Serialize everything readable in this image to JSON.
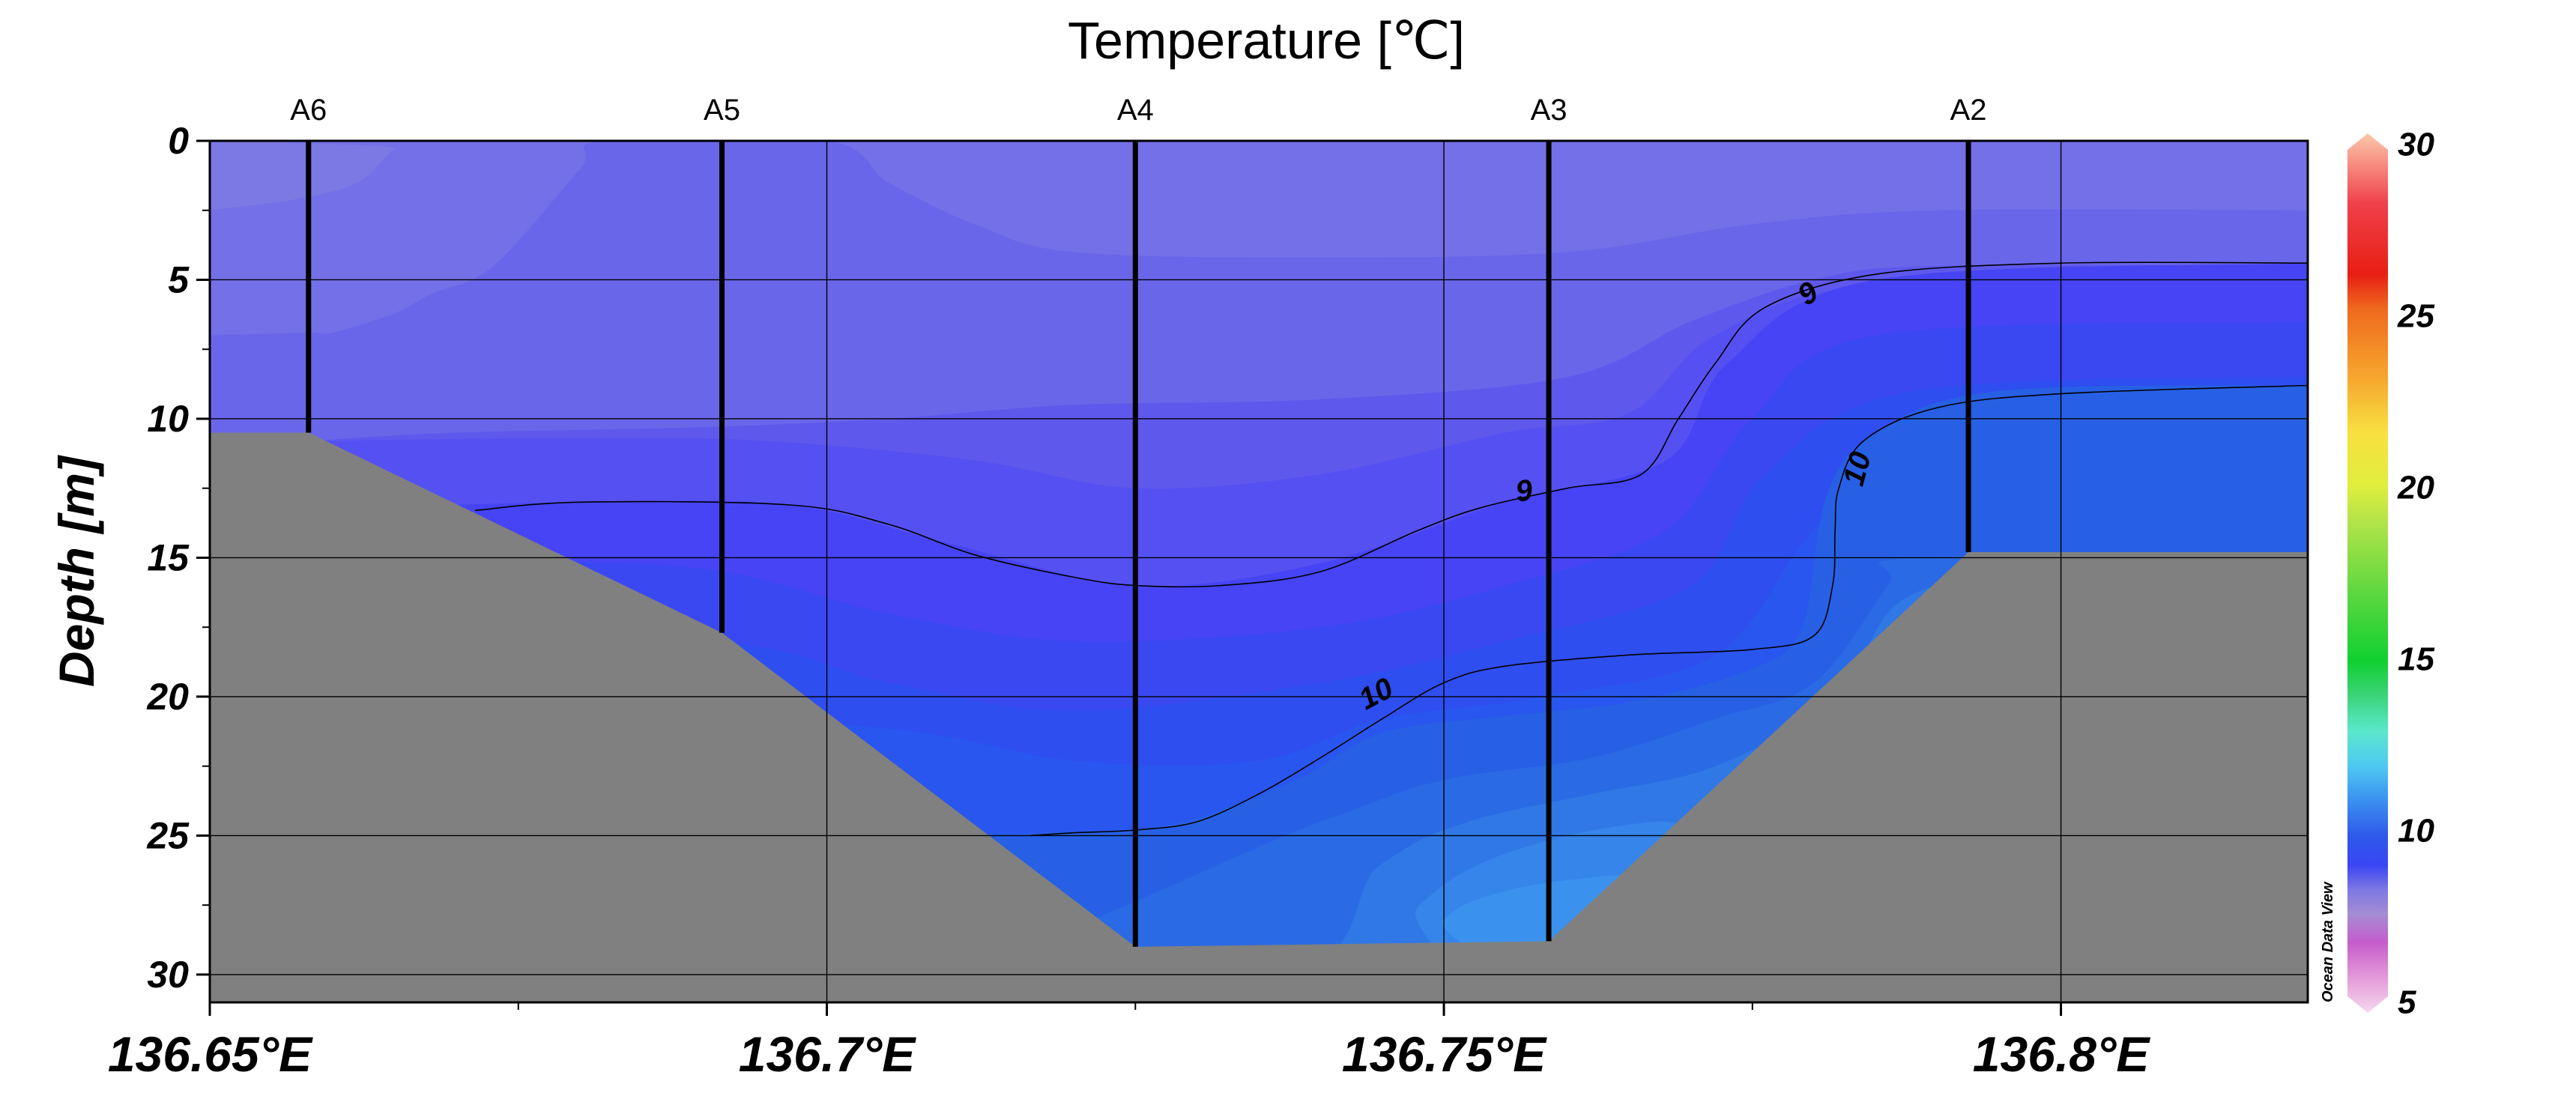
{
  "chart_data": {
    "type": "heatmap",
    "title": "Temperature [℃]",
    "ylabel": "Depth [m]",
    "xlabel": "",
    "x_unit_suffix": "°E",
    "xlim": [
      136.65,
      136.82
    ],
    "ylim": [
      0,
      31
    ],
    "y_inverted": true,
    "x_ticks": [
      "136.65°E",
      "136.7°E",
      "136.75°E",
      "136.8°E"
    ],
    "x_tick_values": [
      136.65,
      136.7,
      136.75,
      136.8
    ],
    "x_minor_ticks": [
      136.675,
      136.725,
      136.775
    ],
    "y_ticks": [
      0,
      5,
      10,
      15,
      20,
      25,
      30
    ],
    "y_minor_ticks": [
      2.5,
      7.5,
      12.5,
      17.5,
      22.5,
      27.5
    ],
    "grid": true,
    "stations": [
      {
        "name": "A6",
        "lon": 136.658,
        "max_depth": 10.5
      },
      {
        "name": "A5",
        "lon": 136.6915,
        "max_depth": 17.7
      },
      {
        "name": "A4",
        "lon": 136.725,
        "max_depth": 29.0
      },
      {
        "name": "A3",
        "lon": 136.7585,
        "max_depth": 28.8
      },
      {
        "name": "A2",
        "lon": 136.7925,
        "max_depth": 14.8
      }
    ],
    "bottom_profile": [
      {
        "lon": 136.65,
        "depth": 10.5
      },
      {
        "lon": 136.658,
        "depth": 10.5
      },
      {
        "lon": 136.6915,
        "depth": 17.7
      },
      {
        "lon": 136.725,
        "depth": 29.0
      },
      {
        "lon": 136.7585,
        "depth": 28.8
      },
      {
        "lon": 136.7925,
        "depth": 14.8
      },
      {
        "lon": 136.82,
        "depth": 14.8
      }
    ],
    "temperature_bands": [
      {
        "temp": 8.5,
        "color": "#7c78e4",
        "upper": [
          [
            136.65,
            0
          ],
          [
            136.82,
            0
          ]
        ]
      },
      {
        "temp": 8.6,
        "color": "#7470e8",
        "upper": [
          [
            136.65,
            2.5
          ],
          [
            136.657,
            2.1
          ],
          [
            136.662,
            1.5
          ],
          [
            136.665,
            0.3
          ],
          [
            136.668,
            0
          ],
          [
            136.82,
            0
          ]
        ]
      },
      {
        "temp": 8.7,
        "color": "#6a66ea",
        "upper": [
          [
            136.65,
            7
          ],
          [
            136.658,
            6.9
          ],
          [
            136.66,
            6.9
          ],
          [
            136.665,
            6.2
          ],
          [
            136.668,
            5.5
          ],
          [
            136.673,
            4.5
          ],
          [
            136.68,
            1
          ],
          [
            136.682,
            0
          ],
          [
            136.7,
            0
          ],
          [
            136.705,
            1.5
          ],
          [
            136.712,
            3
          ],
          [
            136.72,
            4
          ],
          [
            136.74,
            4.2
          ],
          [
            136.76,
            4
          ],
          [
            136.775,
            3
          ],
          [
            136.79,
            2.5
          ],
          [
            136.82,
            2.5
          ]
        ]
      },
      {
        "temp": 8.8,
        "color": "#5e58ec",
        "upper": [
          [
            136.65,
            11
          ],
          [
            136.658,
            10.8
          ],
          [
            136.67,
            10.5
          ],
          [
            136.69,
            10.3
          ],
          [
            136.705,
            10
          ],
          [
            136.72,
            9.5
          ],
          [
            136.74,
            9.3
          ],
          [
            136.76,
            8.5
          ],
          [
            136.77,
            6.5
          ],
          [
            136.78,
            5
          ],
          [
            136.79,
            4.5
          ],
          [
            136.82,
            4.5
          ]
        ]
      },
      {
        "temp": 8.9,
        "color": "#5450f2",
        "upper": [
          [
            136.65,
            11
          ],
          [
            136.66,
            10.8
          ],
          [
            136.68,
            10.7
          ],
          [
            136.695,
            10.8
          ],
          [
            136.712,
            11.5
          ],
          [
            136.725,
            12.5
          ],
          [
            136.74,
            12
          ],
          [
            136.755,
            10.5
          ],
          [
            136.765,
            9.8
          ],
          [
            136.772,
            7
          ],
          [
            136.785,
            5.2
          ],
          [
            136.82,
            5
          ]
        ]
      },
      {
        "temp": 9.0,
        "color": "#4644f4",
        "upper": [
          [
            136.65,
            14
          ],
          [
            136.66,
            13.3
          ],
          [
            136.68,
            13
          ],
          [
            136.697,
            13.1
          ],
          [
            136.71,
            14.5
          ],
          [
            136.725,
            16
          ],
          [
            136.74,
            15.2
          ],
          [
            136.755,
            13
          ],
          [
            136.768,
            11.5
          ],
          [
            136.773,
            8
          ],
          [
            136.785,
            5
          ],
          [
            136.82,
            4.4
          ]
        ]
      },
      {
        "temp": 9.2,
        "color": "#3a48f2",
        "upper": [
          [
            136.65,
            16
          ],
          [
            136.67,
            15.2
          ],
          [
            136.69,
            15.4
          ],
          [
            136.705,
            17
          ],
          [
            136.72,
            18
          ],
          [
            136.74,
            17.5
          ],
          [
            136.755,
            16
          ],
          [
            136.768,
            14
          ],
          [
            136.775,
            10
          ],
          [
            136.785,
            7
          ],
          [
            136.82,
            6.5
          ]
        ]
      },
      {
        "temp": 9.4,
        "color": "#2e4ef0",
        "upper": [
          [
            136.65,
            18
          ],
          [
            136.69,
            18
          ],
          [
            136.705,
            19.5
          ],
          [
            136.72,
            20.5
          ],
          [
            136.74,
            19.5
          ],
          [
            136.755,
            18
          ],
          [
            136.77,
            16
          ],
          [
            136.776,
            12
          ],
          [
            136.788,
            9
          ],
          [
            136.82,
            8.5
          ]
        ]
      },
      {
        "temp": 9.7,
        "color": "#2856ee",
        "upper": [
          [
            136.65,
            21
          ],
          [
            136.7,
            21
          ],
          [
            136.72,
            22.3
          ],
          [
            136.735,
            22.3
          ],
          [
            136.745,
            20.8
          ],
          [
            136.758,
            20
          ],
          [
            136.772,
            18.5
          ],
          [
            136.78,
            14
          ],
          [
            136.79,
            10.3
          ],
          [
            136.82,
            10
          ]
        ]
      },
      {
        "temp": 10.0,
        "color": "#2760e4",
        "upper": [
          [
            136.65,
            25
          ],
          [
            136.7,
            25
          ],
          [
            136.718,
            24.9
          ],
          [
            136.728,
            24.6
          ],
          [
            136.738,
            23
          ],
          [
            136.745,
            21.3
          ],
          [
            136.755,
            20.7
          ],
          [
            136.765,
            20.2
          ],
          [
            136.775,
            19
          ],
          [
            136.779,
            17.5
          ],
          [
            136.781,
            12.8
          ],
          [
            136.785,
            10.5
          ],
          [
            136.795,
            9
          ],
          [
            136.82,
            8.8
          ]
        ]
      },
      {
        "temp": 10.2,
        "color": "#2a6ae4",
        "upper": [
          [
            136.65,
            31
          ],
          [
            136.7,
            31
          ],
          [
            136.74,
            24.5
          ],
          [
            136.75,
            23
          ],
          [
            136.762,
            22.2
          ],
          [
            136.772,
            20.8
          ],
          [
            136.78,
            19.5
          ],
          [
            136.786,
            16
          ],
          [
            136.788,
            15
          ],
          [
            136.82,
            15
          ]
        ]
      },
      {
        "temp": 10.4,
        "color": "#2f78e6",
        "upper": [
          [
            136.65,
            31
          ],
          [
            136.73,
            31
          ],
          [
            136.745,
            26
          ],
          [
            136.752,
            24.5
          ],
          [
            136.762,
            23.5
          ],
          [
            136.772,
            22.5
          ],
          [
            136.782,
            20
          ],
          [
            136.79,
            16
          ],
          [
            136.82,
            16
          ]
        ]
      },
      {
        "temp": 10.6,
        "color": "#3585ea",
        "upper": [
          [
            136.65,
            31
          ],
          [
            136.74,
            31
          ],
          [
            136.748,
            27.5
          ],
          [
            136.753,
            26
          ],
          [
            136.76,
            25
          ],
          [
            136.767,
            24.5
          ],
          [
            136.772,
            24.5
          ],
          [
            136.78,
            22.5
          ],
          [
            136.786,
            20
          ],
          [
            136.82,
            20
          ]
        ]
      },
      {
        "temp": 10.8,
        "color": "#3b92ee",
        "upper": [
          [
            136.65,
            31
          ],
          [
            136.745,
            31
          ],
          [
            136.75,
            28
          ],
          [
            136.755,
            27
          ],
          [
            136.762,
            26.5
          ],
          [
            136.775,
            26
          ],
          [
            136.782,
            24
          ],
          [
            136.82,
            24
          ]
        ]
      }
    ],
    "contours": [
      {
        "level": 9,
        "label": "9",
        "points": [
          [
            136.6715,
            13.3
          ],
          [
            136.68,
            13
          ],
          [
            136.697,
            13.1
          ],
          [
            136.705,
            13.8
          ],
          [
            136.712,
            14.9
          ],
          [
            136.72,
            15.7
          ],
          [
            136.725,
            16.0
          ],
          [
            136.732,
            16.0
          ],
          [
            136.74,
            15.5
          ],
          [
            136.748,
            14
          ],
          [
            136.753,
            13.2
          ],
          [
            136.76,
            12.5
          ],
          [
            136.766,
            12
          ],
          [
            136.769,
            10
          ],
          [
            136.772,
            8
          ],
          [
            136.776,
            6
          ],
          [
            136.785,
            4.8
          ],
          [
            136.8,
            4.4
          ],
          [
            136.82,
            4.4
          ]
        ],
        "labels": [
          {
            "lon": 136.7565,
            "depth": 12.6,
            "angle": -8
          },
          {
            "lon": 136.7795,
            "depth": 5.5,
            "angle": -35
          }
        ]
      },
      {
        "level": 10,
        "label": "10",
        "points": [
          [
            136.7165,
            25.0
          ],
          [
            136.72,
            24.9
          ],
          [
            136.725,
            24.8
          ],
          [
            136.73,
            24.5
          ],
          [
            136.735,
            23.5
          ],
          [
            136.74,
            22.2
          ],
          [
            136.745,
            20.8
          ],
          [
            136.75,
            19.5
          ],
          [
            136.755,
            18.9
          ],
          [
            136.765,
            18.5
          ],
          [
            136.775,
            18.3
          ],
          [
            136.78,
            17.8
          ],
          [
            136.7815,
            16
          ],
          [
            136.7817,
            14
          ],
          [
            136.782,
            12.5
          ],
          [
            136.784,
            10.8
          ],
          [
            136.79,
            9.6
          ],
          [
            136.8,
            9.1
          ],
          [
            136.82,
            8.8
          ]
        ],
        "labels": [
          {
            "lon": 136.7445,
            "depth": 19.9,
            "angle": -28
          },
          {
            "lon": 136.7835,
            "depth": 11.8,
            "angle": -75
          }
        ]
      }
    ],
    "colorbar": {
      "min": 5,
      "max": 30,
      "ticks": [
        5,
        10,
        15,
        20,
        25,
        30
      ],
      "colors": [
        [
          5,
          "#f4d8ee"
        ],
        [
          6,
          "#e59ad8"
        ],
        [
          7,
          "#c55ccc"
        ],
        [
          7.8,
          "#a68cd4"
        ],
        [
          8.5,
          "#7c78e4"
        ],
        [
          9.2,
          "#3a46f4"
        ],
        [
          10,
          "#2e58ea"
        ],
        [
          11,
          "#3a8ef0"
        ],
        [
          12,
          "#4ec8f2"
        ],
        [
          13,
          "#5ae8cc"
        ],
        [
          14,
          "#3cd47a"
        ],
        [
          15,
          "#10d030"
        ],
        [
          17,
          "#60d840"
        ],
        [
          19,
          "#b4e448"
        ],
        [
          20,
          "#e0ee3c"
        ],
        [
          21.5,
          "#f8e040"
        ],
        [
          23,
          "#f6a82e"
        ],
        [
          25,
          "#ef6a1e"
        ],
        [
          26,
          "#e81e14"
        ],
        [
          28,
          "#f0404a"
        ],
        [
          30,
          "#fbc8ac"
        ]
      ]
    },
    "bathymetry_color": "#808080",
    "credit": "Ocean Data View"
  }
}
